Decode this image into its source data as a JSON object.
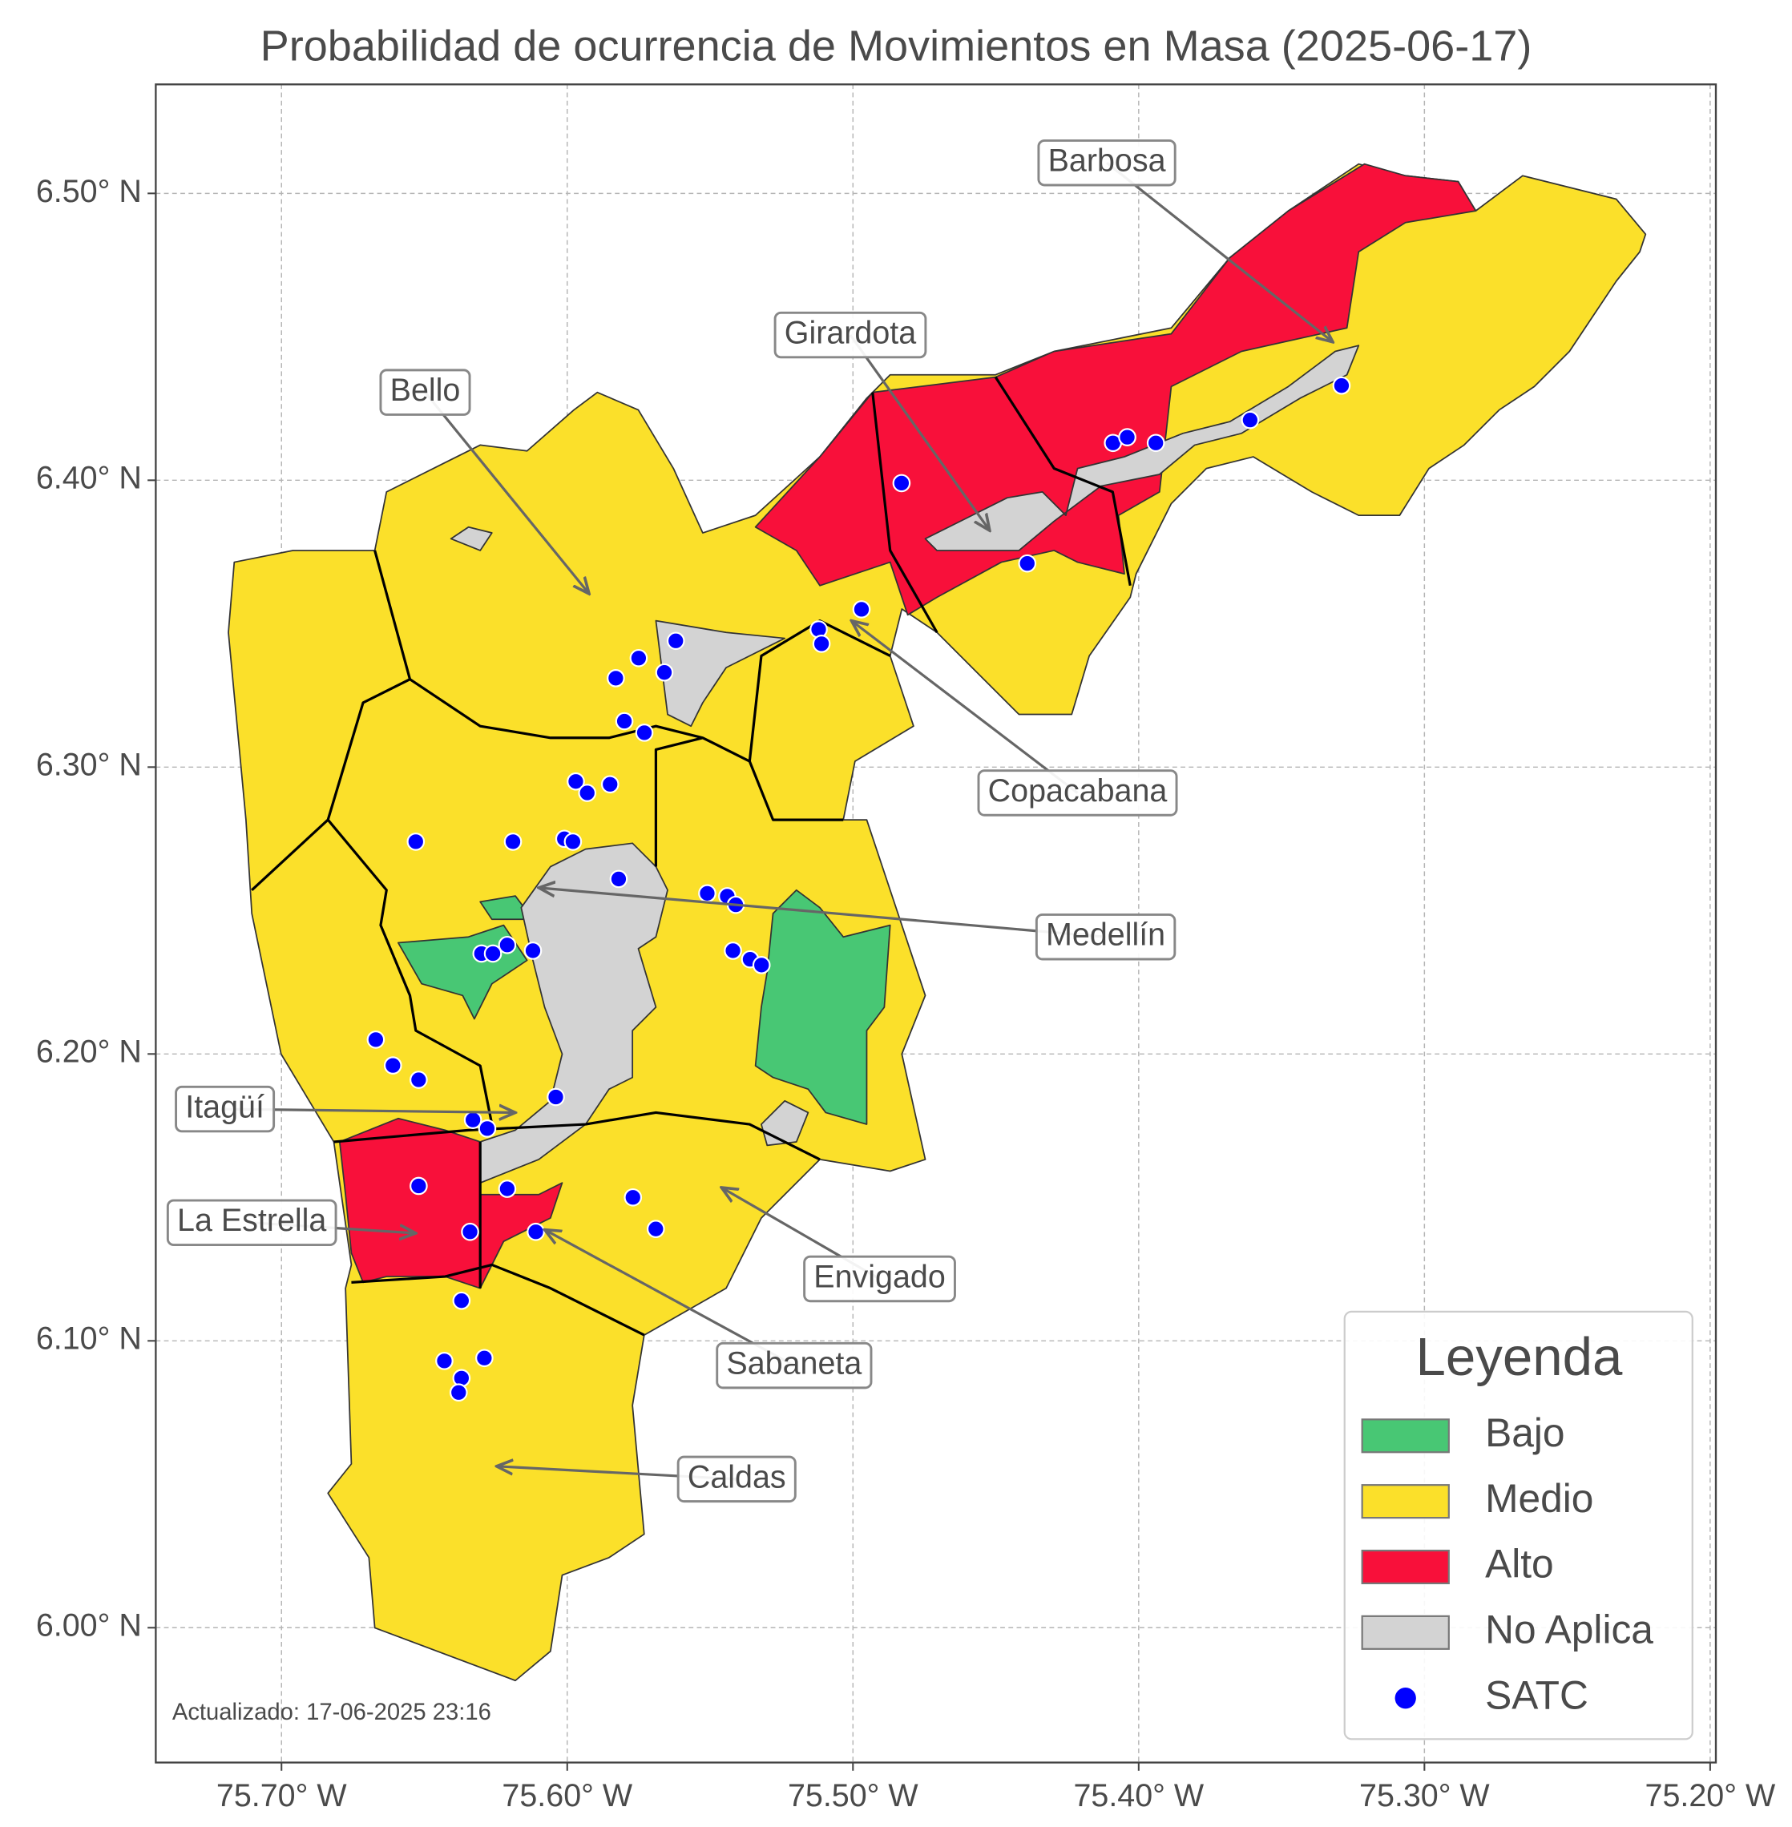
{
  "map": {
    "title": "Probabilidad de ocurrencia de Movimientos en Masa (2025-06-17)",
    "xlim": [
      -75.744,
      -75.198
    ],
    "ylim": [
      5.953,
      6.538
    ],
    "xticks": [
      {
        "value": -75.7,
        "label": "75.70° W"
      },
      {
        "value": -75.6,
        "label": "75.60° W"
      },
      {
        "value": -75.5,
        "label": "75.50° W"
      },
      {
        "value": -75.4,
        "label": "75.40° W"
      },
      {
        "value": -75.3,
        "label": "75.30° W"
      },
      {
        "value": -75.2,
        "label": "75.20° W"
      }
    ],
    "yticks": [
      {
        "value": 6.5,
        "label": "6.50° N"
      },
      {
        "value": 6.4,
        "label": "6.40° N"
      },
      {
        "value": 6.3,
        "label": "6.30° N"
      },
      {
        "value": 6.2,
        "label": "6.20° N"
      },
      {
        "value": 6.1,
        "label": "6.10° N"
      },
      {
        "value": 6.0,
        "label": "6.00° N"
      }
    ],
    "grid": true,
    "annotations": [
      "Barbosa",
      "Girardota",
      "Bello",
      "Copacabana",
      "Medellín",
      "Itagüí",
      "La Estrella",
      "Envigado",
      "Sabaneta",
      "Caldas"
    ],
    "legend": {
      "title": "Leyenda",
      "items": [
        {
          "label": "Bajo",
          "color": "#48c774"
        },
        {
          "label": "Medio",
          "color": "#fbe02a"
        },
        {
          "label": "Alto",
          "color": "#f8103a"
        },
        {
          "label": "No Aplica",
          "color": "#d3d3d3"
        }
      ]
    },
    "points": {
      "name": "SATC",
      "color": "#0000ff",
      "lon": [
        -75.483,
        -75.409,
        -75.404,
        -75.394,
        -75.361,
        -75.329,
        -75.439,
        -75.497,
        -75.512,
        -75.511,
        -75.562,
        -75.575,
        -75.566,
        -75.583,
        -75.58,
        -75.573,
        -75.597,
        -75.593,
        -75.585,
        -75.653,
        -75.619,
        -75.601,
        -75.598,
        -75.582,
        -75.551,
        -75.544,
        -75.541,
        -75.542,
        -75.536,
        -75.532,
        -75.621,
        -75.63,
        -75.626,
        -75.612,
        -75.667,
        -75.661,
        -75.652,
        -75.604,
        -75.633,
        -75.628,
        -75.652,
        -75.621,
        -75.577,
        -75.569,
        -75.634,
        -75.611,
        -75.637,
        -75.643,
        -75.629,
        -75.637,
        -75.638
      ],
      "lat": [
        6.399,
        6.413,
        6.415,
        6.413,
        6.421,
        6.433,
        6.371,
        6.355,
        6.348,
        6.343,
        6.344,
        6.338,
        6.333,
        6.331,
        6.316,
        6.312,
        6.295,
        6.291,
        6.294,
        6.274,
        6.274,
        6.275,
        6.274,
        6.261,
        6.256,
        6.255,
        6.252,
        6.236,
        6.233,
        6.231,
        6.238,
        6.235,
        6.235,
        6.236,
        6.205,
        6.196,
        6.191,
        6.185,
        6.177,
        6.174,
        6.154,
        6.153,
        6.15,
        6.139,
        6.138,
        6.138,
        6.114,
        6.093,
        6.094,
        6.087,
        6.082
      ]
    },
    "footnote": "Actualizado: 17-06-2025 23:16"
  }
}
